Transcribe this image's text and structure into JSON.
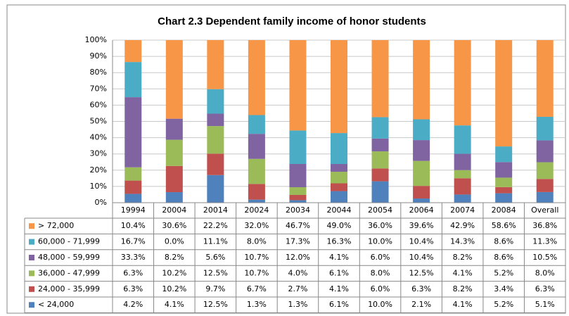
{
  "chart_data": {
    "type": "bar",
    "stacking": "percent",
    "title": "Chart 2.3 Dependent family income of honor students",
    "categories": [
      "19994",
      "20004",
      "20014",
      "20024",
      "20034",
      "20044",
      "20054",
      "20064",
      "20074",
      "20084",
      "Overall"
    ],
    "series": [
      {
        "name": "> 72,000",
        "color": "#F79646",
        "values": [
          10.4,
          30.6,
          22.2,
          32.0,
          46.7,
          49.0,
          36.0,
          39.6,
          42.9,
          58.6,
          36.8
        ],
        "value_labels": [
          "10.4%",
          "30.6%",
          "22.2%",
          "32.0%",
          "46.7%",
          "49.0%",
          "36.0%",
          "39.6%",
          "42.9%",
          "58.6%",
          "36.8%"
        ]
      },
      {
        "name": "60,000 - 71,999",
        "color": "#4BACC6",
        "values": [
          16.7,
          0.0,
          11.1,
          8.0,
          17.3,
          16.3,
          10.0,
          10.4,
          14.3,
          8.6,
          11.3
        ],
        "value_labels": [
          "16.7%",
          "0.0%",
          "11.1%",
          "8.0%",
          "17.3%",
          "16.3%",
          "10.0%",
          "10.4%",
          "14.3%",
          "8.6%",
          "11.3%"
        ]
      },
      {
        "name": "48,000 - 59,999",
        "color": "#8064A2",
        "values": [
          33.3,
          8.2,
          5.6,
          10.7,
          12.0,
          4.1,
          6.0,
          10.4,
          8.2,
          8.6,
          10.5
        ],
        "value_labels": [
          "33.3%",
          "8.2%",
          "5.6%",
          "10.7%",
          "12.0%",
          "4.1%",
          "6.0%",
          "10.4%",
          "8.2%",
          "8.6%",
          "10.5%"
        ]
      },
      {
        "name": "36,000 - 47,999",
        "color": "#9BBB59",
        "values": [
          6.3,
          10.2,
          12.5,
          10.7,
          4.0,
          6.1,
          8.0,
          12.5,
          4.1,
          5.2,
          8.0
        ],
        "value_labels": [
          "6.3%",
          "10.2%",
          "12.5%",
          "10.7%",
          "4.0%",
          "6.1%",
          "8.0%",
          "12.5%",
          "4.1%",
          "5.2%",
          "8.0%"
        ]
      },
      {
        "name": "24,000 - 35,999",
        "color": "#C0504D",
        "values": [
          6.3,
          10.2,
          9.7,
          6.7,
          2.7,
          4.1,
          6.0,
          6.3,
          8.2,
          3.4,
          6.3
        ],
        "value_labels": [
          "6.3%",
          "10.2%",
          "9.7%",
          "6.7%",
          "2.7%",
          "4.1%",
          "6.0%",
          "6.3%",
          "8.2%",
          "3.4%",
          "6.3%"
        ]
      },
      {
        "name": "< 24,000",
        "color": "#4F81BD",
        "values": [
          4.2,
          4.1,
          12.5,
          1.3,
          1.3,
          6.1,
          10.0,
          2.1,
          4.1,
          5.2,
          5.1
        ],
        "value_labels": [
          "4.2%",
          "4.1%",
          "12.5%",
          "1.3%",
          "1.3%",
          "6.1%",
          "10.0%",
          "2.1%",
          "4.1%",
          "5.2%",
          "5.1%"
        ]
      }
    ],
    "ylim": [
      0,
      100
    ],
    "yticks": [
      {
        "value": 0,
        "label": "0%"
      },
      {
        "value": 10,
        "label": "10%"
      },
      {
        "value": 20,
        "label": "20%"
      },
      {
        "value": 30,
        "label": "30%"
      },
      {
        "value": 40,
        "label": "40%"
      },
      {
        "value": 50,
        "label": "50%"
      },
      {
        "value": 60,
        "label": "60%"
      },
      {
        "value": 70,
        "label": "70%"
      },
      {
        "value": 80,
        "label": "80%"
      },
      {
        "value": 90,
        "label": "90%"
      },
      {
        "value": 100,
        "label": "100%"
      }
    ],
    "grid": true
  }
}
